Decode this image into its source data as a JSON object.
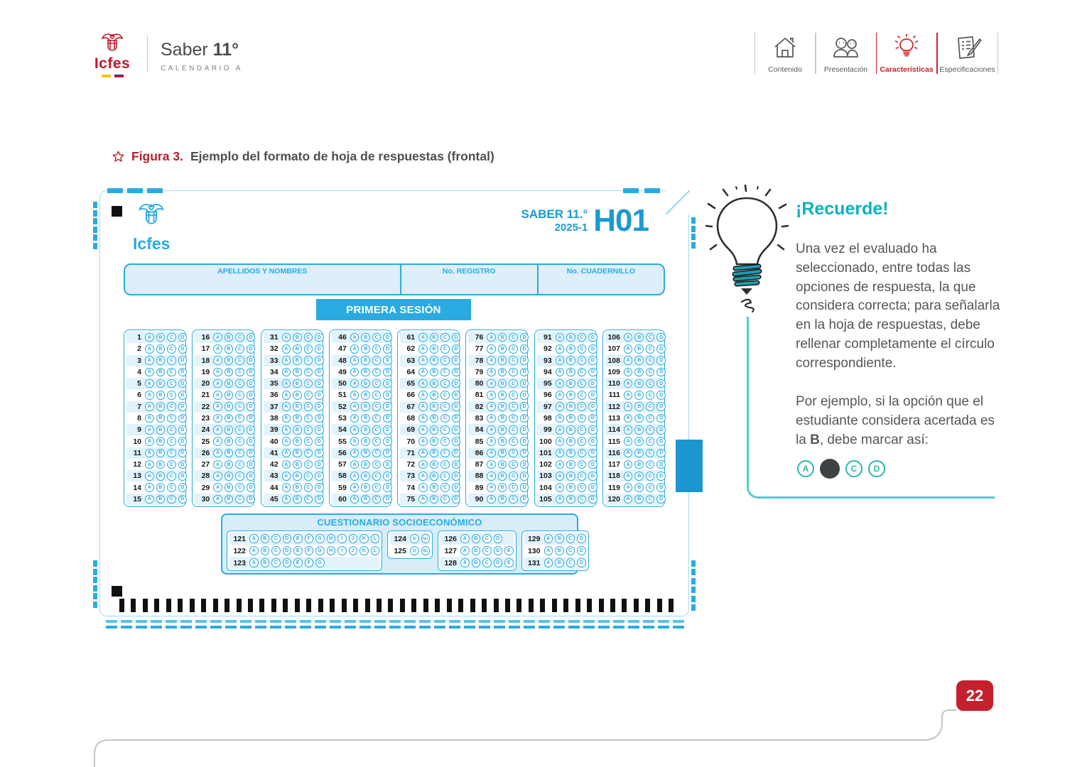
{
  "header": {
    "brand": {
      "name": "Icfes",
      "product": "Saber",
      "grade": "11°",
      "calendar": "CALENDARIO A"
    },
    "nav": [
      {
        "label": "Contenido",
        "active": false
      },
      {
        "label": "Presentación",
        "active": false
      },
      {
        "label": "Características",
        "active": true
      },
      {
        "label": "Especificaciones",
        "active": false
      }
    ]
  },
  "figure": {
    "label": "Figura 3.",
    "caption": "Ejemplo del formato de hoja de respuestas (frontal)"
  },
  "sheet": {
    "brand": "Icfes",
    "exam": "SABER 11.°",
    "period": "2025-1",
    "form_code": "H01",
    "fields": [
      "APELLIDOS Y NOMBRES",
      "No. REGISTRO",
      "No. CUADERNILLO"
    ],
    "session": "PRIMERA SESIÓN",
    "options": [
      "A",
      "B",
      "C",
      "D"
    ],
    "columns": [
      {
        "from": 1,
        "to": 15
      },
      {
        "from": 16,
        "to": 30
      },
      {
        "from": 31,
        "to": 45
      },
      {
        "from": 46,
        "to": 60
      },
      {
        "from": 61,
        "to": 75
      },
      {
        "from": 76,
        "to": 90
      },
      {
        "from": 91,
        "to": 105
      },
      {
        "from": 106,
        "to": 120
      }
    ],
    "socio": {
      "title": "CUESTIONARIO SOCIOECONÓMICO",
      "groups": [
        {
          "rows": [
            {
              "n": 121,
              "options": [
                "A",
                "B",
                "C",
                "D",
                "E",
                "F",
                "G",
                "H",
                "I",
                "J",
                "K",
                "L"
              ]
            },
            {
              "n": 122,
              "options": [
                "A",
                "B",
                "C",
                "D",
                "E",
                "F",
                "G",
                "H",
                "I",
                "J",
                "K",
                "L"
              ]
            },
            {
              "n": 123,
              "options": [
                "A",
                "B",
                "C",
                "D",
                "E",
                "F",
                "G"
              ]
            }
          ]
        },
        {
          "rows": [
            {
              "n": 124,
              "options": [
                "Sí",
                "No"
              ]
            },
            {
              "n": 125,
              "options": [
                "Sí",
                "No"
              ]
            }
          ]
        },
        {
          "rows": [
            {
              "n": 126,
              "options": [
                "A",
                "B",
                "C",
                "D"
              ]
            },
            {
              "n": 127,
              "options": [
                "A",
                "B",
                "C",
                "D",
                "E"
              ]
            },
            {
              "n": 128,
              "options": [
                "A",
                "B",
                "C",
                "D",
                "E"
              ]
            }
          ]
        },
        {
          "rows": [
            {
              "n": 129,
              "options": [
                "A",
                "B",
                "C",
                "D"
              ]
            },
            {
              "n": 130,
              "options": [
                "A",
                "B",
                "C",
                "D"
              ]
            },
            {
              "n": 131,
              "options": [
                "A",
                "B",
                "C",
                "D"
              ]
            }
          ]
        }
      ]
    },
    "timing_bar_count": 48
  },
  "aside": {
    "heading": "¡Recuerde!",
    "paragraph1": "Una vez el evaluado ha seleccionado, entre todas las opciones de respuesta, la que considera correcta; para señalarla en la hoja de respuestas, debe rellenar completamente el círculo correspondiente.",
    "paragraph2_prefix": "Por ejemplo, si la opción que el estudiante considera acertada es la ",
    "paragraph2_bold": "B",
    "paragraph2_suffix": ", debe marcar así:",
    "example": [
      {
        "label": "A",
        "filled": false
      },
      {
        "label": "B",
        "filled": true
      },
      {
        "label": "C",
        "filled": false
      },
      {
        "label": "D",
        "filled": false
      }
    ]
  },
  "page": {
    "number": "22"
  },
  "colors": {
    "cyan": "#29abe2",
    "teal": "#0fb0bd",
    "red": "#c5202e"
  }
}
